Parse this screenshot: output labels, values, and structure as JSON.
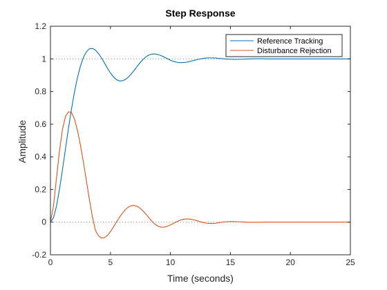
{
  "chart_data": {
    "type": "line",
    "title": "Step Response",
    "xlabel": "Time (seconds)",
    "ylabel": "Amplitude",
    "xlim": [
      0,
      25
    ],
    "ylim": [
      -0.2,
      1.2
    ],
    "xticks": [
      0,
      5,
      10,
      15,
      20,
      25
    ],
    "yticks": [
      -0.2,
      0,
      0.2,
      0.4,
      0.6,
      0.8,
      1,
      1.2
    ],
    "xtick_labels": [
      "0",
      "5",
      "10",
      "15",
      "20",
      "25"
    ],
    "ytick_labels": [
      "-0.2",
      "0",
      "0.2",
      "0.4",
      "0.6",
      "0.8",
      "1",
      "1.2"
    ],
    "grid": false,
    "reference_lines": [
      0,
      1
    ],
    "legend": {
      "placement": "top-right"
    },
    "x": [
      0,
      0.25,
      0.5,
      0.75,
      1,
      1.25,
      1.5,
      1.75,
      2,
      2.25,
      2.5,
      2.75,
      3,
      3.25,
      3.5,
      3.75,
      4,
      4.25,
      4.5,
      4.75,
      5,
      5.25,
      5.5,
      5.75,
      6,
      6.25,
      6.5,
      6.75,
      7,
      7.25,
      7.5,
      7.75,
      8,
      8.25,
      8.5,
      8.75,
      9,
      9.25,
      9.5,
      9.75,
      10,
      10.25,
      10.5,
      10.75,
      11,
      11.25,
      11.5,
      11.75,
      12,
      12.25,
      12.5,
      12.75,
      13,
      13.25,
      13.5,
      13.75,
      14,
      14.25,
      14.5,
      14.75,
      15,
      15.25,
      15.5,
      15.75,
      16,
      16.25,
      16.5,
      16.75,
      17,
      17.25,
      17.5,
      17.75,
      18,
      18.25,
      18.5,
      18.75,
      19,
      19.25,
      19.5,
      19.75,
      20,
      20.25,
      20.5,
      20.75,
      21,
      21.25,
      21.5,
      21.75,
      22,
      22.25,
      22.5,
      22.75,
      23,
      23.25,
      23.5,
      23.75,
      24,
      24.25,
      24.5,
      24.75,
      25
    ],
    "series": [
      {
        "name": "Reference Tracking",
        "color": "#0072BD",
        "values": [
          0,
          0.026,
          0.097,
          0.2,
          0.32,
          0.448,
          0.574,
          0.691,
          0.796,
          0.885,
          0.956,
          1.009,
          1.044,
          1.062,
          1.064,
          1.054,
          1.033,
          1.006,
          0.975,
          0.943,
          0.914,
          0.89,
          0.873,
          0.865,
          0.866,
          0.874,
          0.889,
          0.909,
          0.932,
          0.956,
          0.979,
          0.999,
          1.015,
          1.025,
          1.03,
          1.03,
          1.026,
          1.019,
          1.01,
          1.001,
          0.992,
          0.985,
          0.98,
          0.977,
          0.977,
          0.979,
          0.982,
          0.987,
          0.991,
          0.996,
          1.0,
          1.003,
          1.005,
          1.006,
          1.006,
          1.005,
          1.003,
          1.002,
          1.0,
          0.999,
          0.998,
          0.997,
          0.997,
          0.998,
          0.998,
          0.999,
          1.0,
          1.0,
          1.001,
          1.001,
          1.001,
          1.001,
          1.0,
          1.0,
          1.0,
          1.0,
          1.0,
          1.0,
          1.0,
          1.0,
          1.0,
          1.0,
          1.0,
          1.0,
          1.0,
          1.0,
          1.0,
          1.0,
          1.0,
          1.0,
          1.0,
          1.0,
          1.0,
          1.0,
          1.0,
          1.0,
          1.0,
          1.0,
          1.0,
          1.0,
          1.0
        ]
      },
      {
        "name": "Disturbance Rejection",
        "color": "#D95319",
        "values": [
          0,
          0.097,
          0.267,
          0.434,
          0.567,
          0.647,
          0.676,
          0.672,
          0.632,
          0.563,
          0.472,
          0.366,
          0.252,
          0.137,
          0.032,
          -0.051,
          -0.083,
          -0.097,
          -0.095,
          -0.081,
          -0.058,
          -0.03,
          0.0,
          0.029,
          0.055,
          0.077,
          0.093,
          0.101,
          0.102,
          0.096,
          0.084,
          0.066,
          0.045,
          0.023,
          0.002,
          -0.015,
          -0.026,
          -0.031,
          -0.03,
          -0.025,
          -0.017,
          -0.008,
          0.002,
          0.01,
          0.016,
          0.019,
          0.019,
          0.017,
          0.013,
          0.008,
          0.002,
          -0.003,
          -0.006,
          -0.008,
          -0.008,
          -0.007,
          -0.004,
          -0.001,
          0.001,
          0.003,
          0.004,
          0.004,
          0.003,
          0.002,
          0.001,
          0.0,
          -0.001,
          -0.001,
          -0.001,
          -0.001,
          -0.001,
          0.0,
          0.0,
          0.0,
          0.0,
          0.0,
          0.0,
          0.0,
          0.0,
          0.0,
          0.0,
          0.0,
          0.0,
          0.0,
          0.0,
          0.0,
          0.0,
          0.0,
          0.0,
          0.0,
          0.0,
          0.0,
          0.0,
          0.0,
          0.0,
          0.0,
          0.0,
          0.0,
          0.0,
          0.0,
          0.0
        ]
      }
    ]
  }
}
